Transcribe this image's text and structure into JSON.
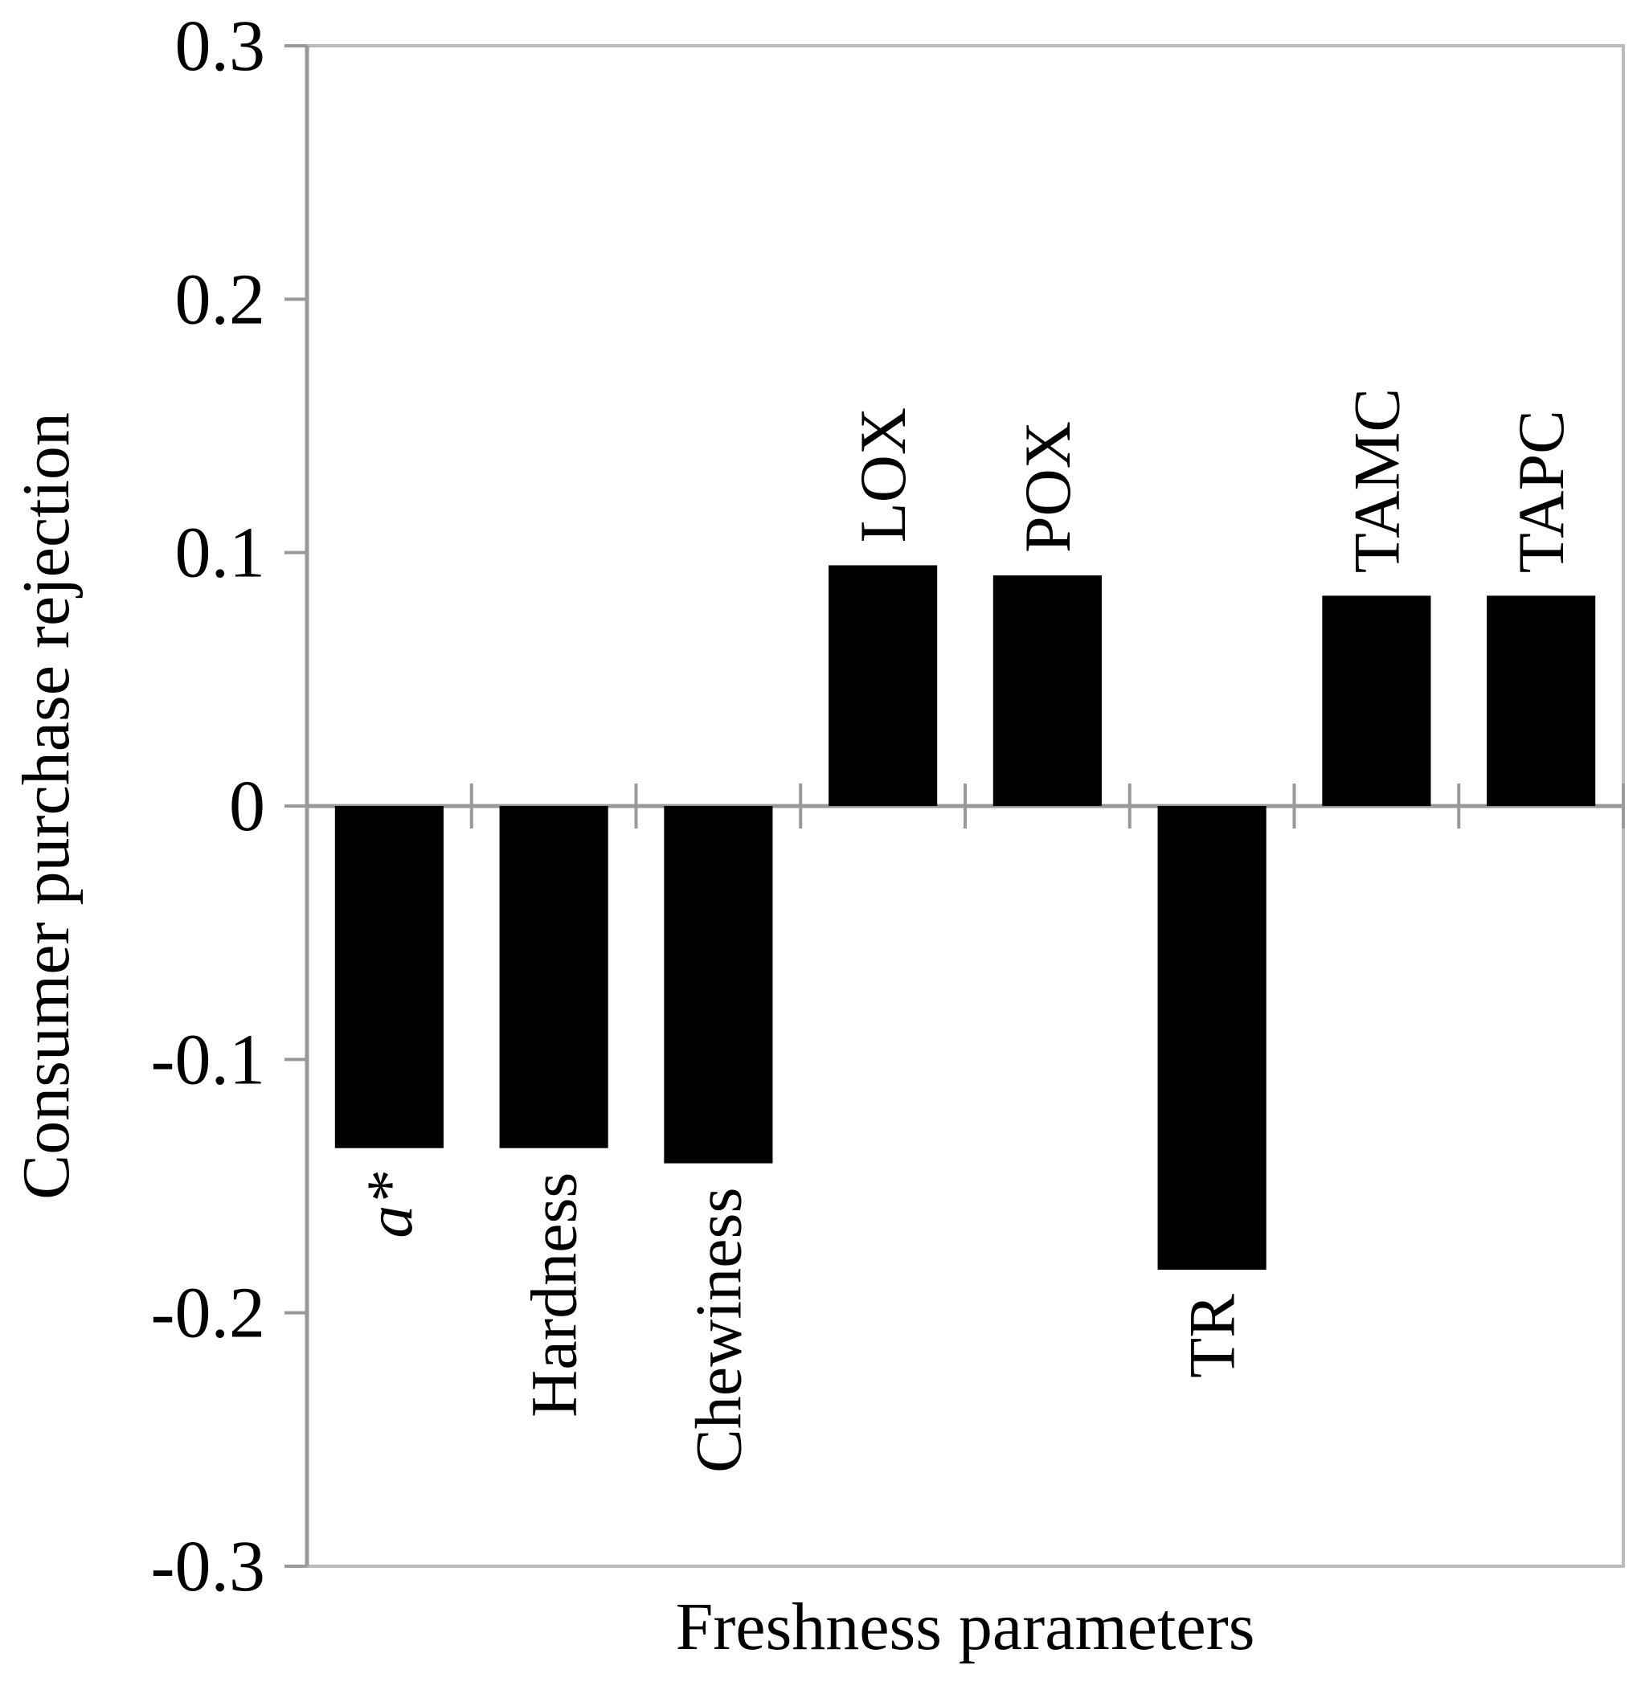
{
  "chart_data": {
    "type": "bar",
    "title": "",
    "xlabel": "Freshness parameters",
    "ylabel": "Consumer purchase rejection",
    "ylim": [
      -0.3,
      0.3
    ],
    "yticks": [
      0.3,
      0.2,
      0.1,
      0,
      -0.1,
      -0.2,
      -0.3
    ],
    "ytick_labels": [
      "0.3",
      "0.2",
      "0.1",
      "0",
      "-0.1",
      "-0.2",
      "-0.3"
    ],
    "categories": [
      "a*",
      "Hardness",
      "Chewiness",
      "LOX",
      "POX",
      "TR",
      "TAMC",
      "TAPC"
    ],
    "values": [
      -0.135,
      -0.135,
      -0.141,
      0.095,
      0.091,
      -0.183,
      0.083,
      0.083
    ],
    "grid": false,
    "legend": "none",
    "bar_color": "#000000",
    "axis_color": "#999999",
    "italic_categories": [
      "a*"
    ]
  }
}
